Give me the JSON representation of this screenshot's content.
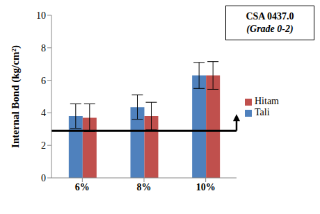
{
  "chart_data": {
    "type": "bar",
    "y_label": "Internal Bond (kg/cm²)",
    "categories": [
      "6%",
      "8%",
      "10%"
    ],
    "series": [
      {
        "name": "Tali",
        "color": "#4f81bd",
        "values": [
          3.8,
          4.35,
          6.3
        ],
        "errors": [
          0.75,
          0.75,
          0.8
        ]
      },
      {
        "name": "Hitam",
        "color": "#c0504d",
        "values": [
          3.7,
          3.8,
          6.3
        ],
        "errors": [
          0.85,
          0.85,
          0.85
        ]
      }
    ],
    "ylim": [
      0,
      10
    ],
    "yticks": [
      0,
      2,
      4,
      6,
      8,
      10
    ],
    "grid": false,
    "legend": "right",
    "annotation": [
      "CSA 0437.0",
      "(Grade 0-2)"
    ],
    "threshold": 2.9
  }
}
